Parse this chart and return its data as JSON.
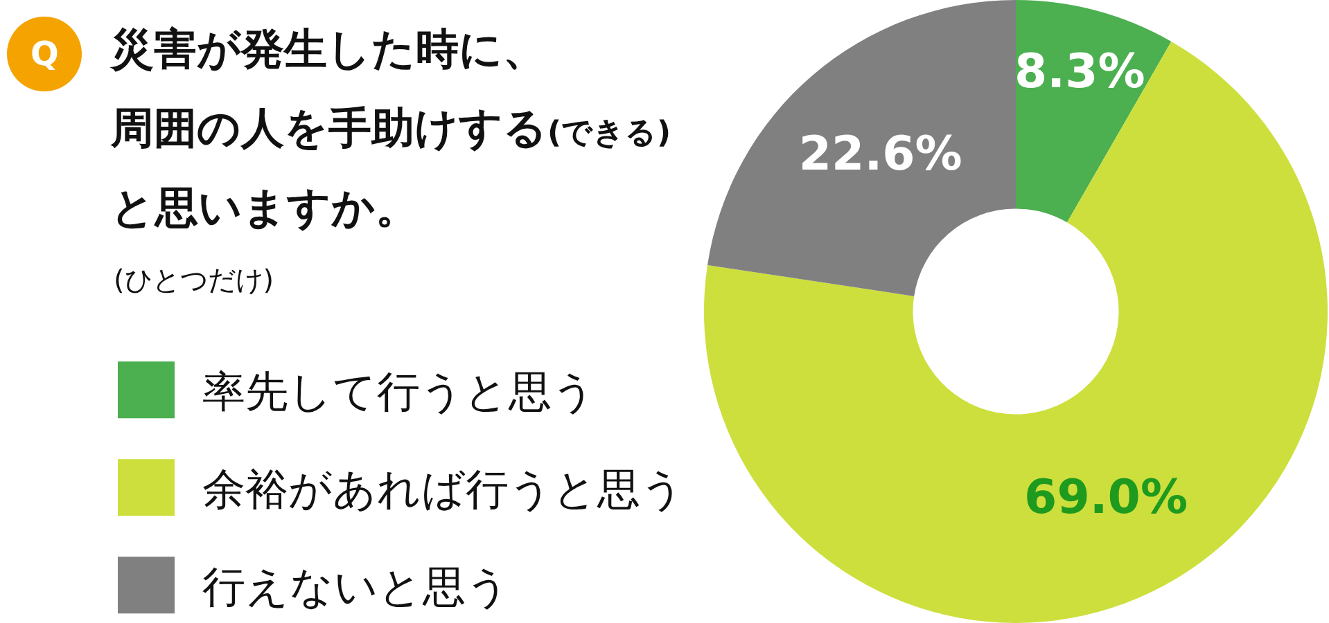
{
  "chart_data": {
    "type": "donut",
    "title": "災害が発生した時に、周囲の人を手助けする(できる)と思いますか。",
    "subtitle": "(ひとつだけ)",
    "annotations": [
      "Q"
    ],
    "categories": [
      "率先して行うと思う",
      "余裕があれば行うと思う",
      "行えないと思う"
    ],
    "values": [
      8.3,
      69.0,
      22.6
    ],
    "colors": [
      "#4caf50",
      "#cddf3d",
      "#808080"
    ],
    "value_labels": [
      "8.3%",
      "69.0%",
      "22.6%"
    ],
    "legend": "left"
  }
}
